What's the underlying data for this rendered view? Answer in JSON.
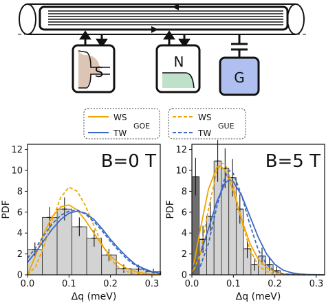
{
  "schematic": {
    "box_s_label": "S",
    "box_n_label": "N",
    "box_g_label": "G",
    "colors": {
      "s_fill": "#d9bfae",
      "n_fill": "#bfe0c9",
      "g_fill": "#aebff0",
      "wire": "#111111"
    }
  },
  "legend": {
    "goe": {
      "tag": "GOE",
      "entries": [
        "WS",
        "TW"
      ]
    },
    "gue": {
      "tag": "GUE",
      "entries": [
        "WS",
        "TW"
      ]
    },
    "colors": {
      "ws": "#f0a500",
      "tw": "#3a67c4"
    }
  },
  "chart_data": [
    {
      "type": "bar",
      "annotation": "B=0 T",
      "xlabel": "Δq (meV)",
      "ylabel": "PDF",
      "xlim": [
        0.0,
        0.32
      ],
      "ylim": [
        0,
        12.5
      ],
      "xticks": [
        "0.0",
        "0.1",
        "0.2",
        "0.3"
      ],
      "yticks": [
        "0",
        "2",
        "4",
        "6",
        "8",
        "10",
        "12"
      ],
      "bin_width": 0.0357,
      "bins_left": [
        0.0,
        0.0357,
        0.0714,
        0.1071,
        0.1428,
        0.1785,
        0.2142,
        0.2499,
        0.2856
      ],
      "values": [
        2.4,
        5.5,
        6.3,
        4.6,
        3.5,
        1.9,
        0.6,
        0.55,
        0.3
      ],
      "errors": [
        0.7,
        1.0,
        1.1,
        0.9,
        0.8,
        0.6,
        0.4,
        0.4,
        0.3
      ],
      "series": [
        {
          "legend": "goe",
          "entry": 0,
          "dash": false,
          "color": "#f0a500",
          "x": [
            0.0,
            0.02,
            0.04,
            0.06,
            0.08,
            0.1,
            0.12,
            0.14,
            0.16,
            0.18,
            0.2,
            0.22,
            0.24,
            0.26,
            0.28,
            0.3,
            0.32
          ],
          "y": [
            0.0,
            1.9,
            4.0,
            5.6,
            6.5,
            6.7,
            6.2,
            5.2,
            4.0,
            2.8,
            1.8,
            1.1,
            0.6,
            0.3,
            0.15,
            0.07,
            0.03
          ]
        },
        {
          "legend": "goe",
          "entry": 1,
          "dash": false,
          "color": "#3a67c4",
          "x": [
            0.0,
            0.02,
            0.04,
            0.06,
            0.08,
            0.1,
            0.12,
            0.14,
            0.16,
            0.18,
            0.2,
            0.22,
            0.24,
            0.26,
            0.28,
            0.3,
            0.32
          ],
          "y": [
            1.2,
            2.2,
            3.3,
            4.4,
            5.3,
            5.9,
            6.1,
            5.9,
            5.3,
            4.4,
            3.4,
            2.5,
            1.7,
            1.0,
            0.6,
            0.3,
            0.15
          ]
        },
        {
          "legend": "gue",
          "entry": 0,
          "dash": true,
          "color": "#f0a500",
          "x": [
            0.0,
            0.02,
            0.04,
            0.06,
            0.08,
            0.1,
            0.12,
            0.14,
            0.16,
            0.18,
            0.2,
            0.22,
            0.24,
            0.26,
            0.28,
            0.3,
            0.32
          ],
          "y": [
            0.0,
            0.8,
            2.8,
            5.3,
            7.4,
            8.4,
            8.0,
            6.6,
            4.7,
            2.9,
            1.5,
            0.7,
            0.3,
            0.1,
            0.04,
            0.01,
            0.0
          ]
        },
        {
          "legend": "gue",
          "entry": 1,
          "dash": true,
          "color": "#3a67c4",
          "x": [
            0.0,
            0.02,
            0.04,
            0.06,
            0.08,
            0.1,
            0.12,
            0.14,
            0.16,
            0.18,
            0.2,
            0.22,
            0.24,
            0.26,
            0.28,
            0.3,
            0.32
          ],
          "y": [
            1.6,
            2.6,
            3.8,
            4.9,
            5.7,
            6.1,
            6.2,
            5.8,
            5.1,
            4.2,
            3.2,
            2.3,
            1.5,
            0.9,
            0.5,
            0.25,
            0.1
          ]
        }
      ]
    },
    {
      "type": "bar",
      "annotation": "B=5 T",
      "xlabel": "Δq (meV)",
      "ylabel": "PDF",
      "xlim": [
        0.0,
        0.32
      ],
      "ylim": [
        0,
        12.5
      ],
      "xticks": [
        "0.0",
        "0.1",
        "0.2",
        "0.3"
      ],
      "yticks": [
        "0",
        "2",
        "4",
        "6",
        "8",
        "10",
        "12"
      ],
      "bin_width": 0.0178,
      "bins_left": [
        0.0,
        0.0178,
        0.0356,
        0.0534,
        0.0712,
        0.089,
        0.1068,
        0.1246,
        0.1424,
        0.1602,
        0.178,
        0.1958
      ],
      "values": [
        9.4,
        3.4,
        5.6,
        10.9,
        10.2,
        9.3,
        6.3,
        2.5,
        1.0,
        1.8,
        1.0,
        0.4
      ],
      "errors": [
        1.8,
        1.3,
        1.4,
        2.0,
        1.9,
        1.8,
        1.4,
        0.9,
        0.6,
        0.8,
        0.6,
        0.4
      ],
      "shaded_bins": [
        0
      ],
      "series": [
        {
          "legend": "goe",
          "entry": 0,
          "dash": false,
          "color": "#f0a500",
          "x": [
            0.0,
            0.02,
            0.04,
            0.06,
            0.07,
            0.08,
            0.1,
            0.12,
            0.14,
            0.16,
            0.18,
            0.2,
            0.22,
            0.24,
            0.26,
            0.28,
            0.3,
            0.32
          ],
          "y": [
            0.0,
            4.3,
            8.2,
            10.3,
            10.4,
            10.0,
            8.0,
            5.3,
            3.0,
            1.5,
            0.7,
            0.3,
            0.1,
            0.05,
            0.02,
            0.0,
            0.0,
            0.0
          ]
        },
        {
          "legend": "goe",
          "entry": 1,
          "dash": false,
          "color": "#3a67c4",
          "x": [
            0.0,
            0.02,
            0.04,
            0.06,
            0.08,
            0.09,
            0.1,
            0.12,
            0.14,
            0.16,
            0.18,
            0.2,
            0.22,
            0.24,
            0.26,
            0.28,
            0.3,
            0.32
          ],
          "y": [
            0.5,
            2.0,
            4.4,
            7.0,
            8.8,
            9.1,
            8.9,
            7.6,
            5.6,
            3.6,
            2.0,
            1.0,
            0.45,
            0.2,
            0.08,
            0.03,
            0.01,
            0.0
          ]
        },
        {
          "legend": "gue",
          "entry": 0,
          "dash": true,
          "color": "#f0a500",
          "x": [
            0.0,
            0.02,
            0.04,
            0.06,
            0.07,
            0.08,
            0.1,
            0.12,
            0.14,
            0.16,
            0.18,
            0.2,
            0.22,
            0.24,
            0.26,
            0.28,
            0.3,
            0.32
          ],
          "y": [
            0.0,
            2.0,
            6.3,
            9.9,
            10.7,
            10.6,
            8.5,
            5.2,
            2.4,
            0.9,
            0.3,
            0.08,
            0.02,
            0.0,
            0.0,
            0.0,
            0.0,
            0.0
          ]
        },
        {
          "legend": "gue",
          "entry": 1,
          "dash": true,
          "color": "#3a67c4",
          "x": [
            0.0,
            0.02,
            0.04,
            0.06,
            0.08,
            0.09,
            0.1,
            0.12,
            0.14,
            0.16,
            0.18,
            0.2,
            0.22,
            0.24,
            0.26,
            0.28,
            0.3,
            0.32
          ],
          "y": [
            0.1,
            0.8,
            3.0,
            6.5,
            9.4,
            10.0,
            9.7,
            7.6,
            4.8,
            2.4,
            1.0,
            0.35,
            0.1,
            0.03,
            0.0,
            0.0,
            0.0,
            0.0
          ]
        }
      ]
    }
  ]
}
